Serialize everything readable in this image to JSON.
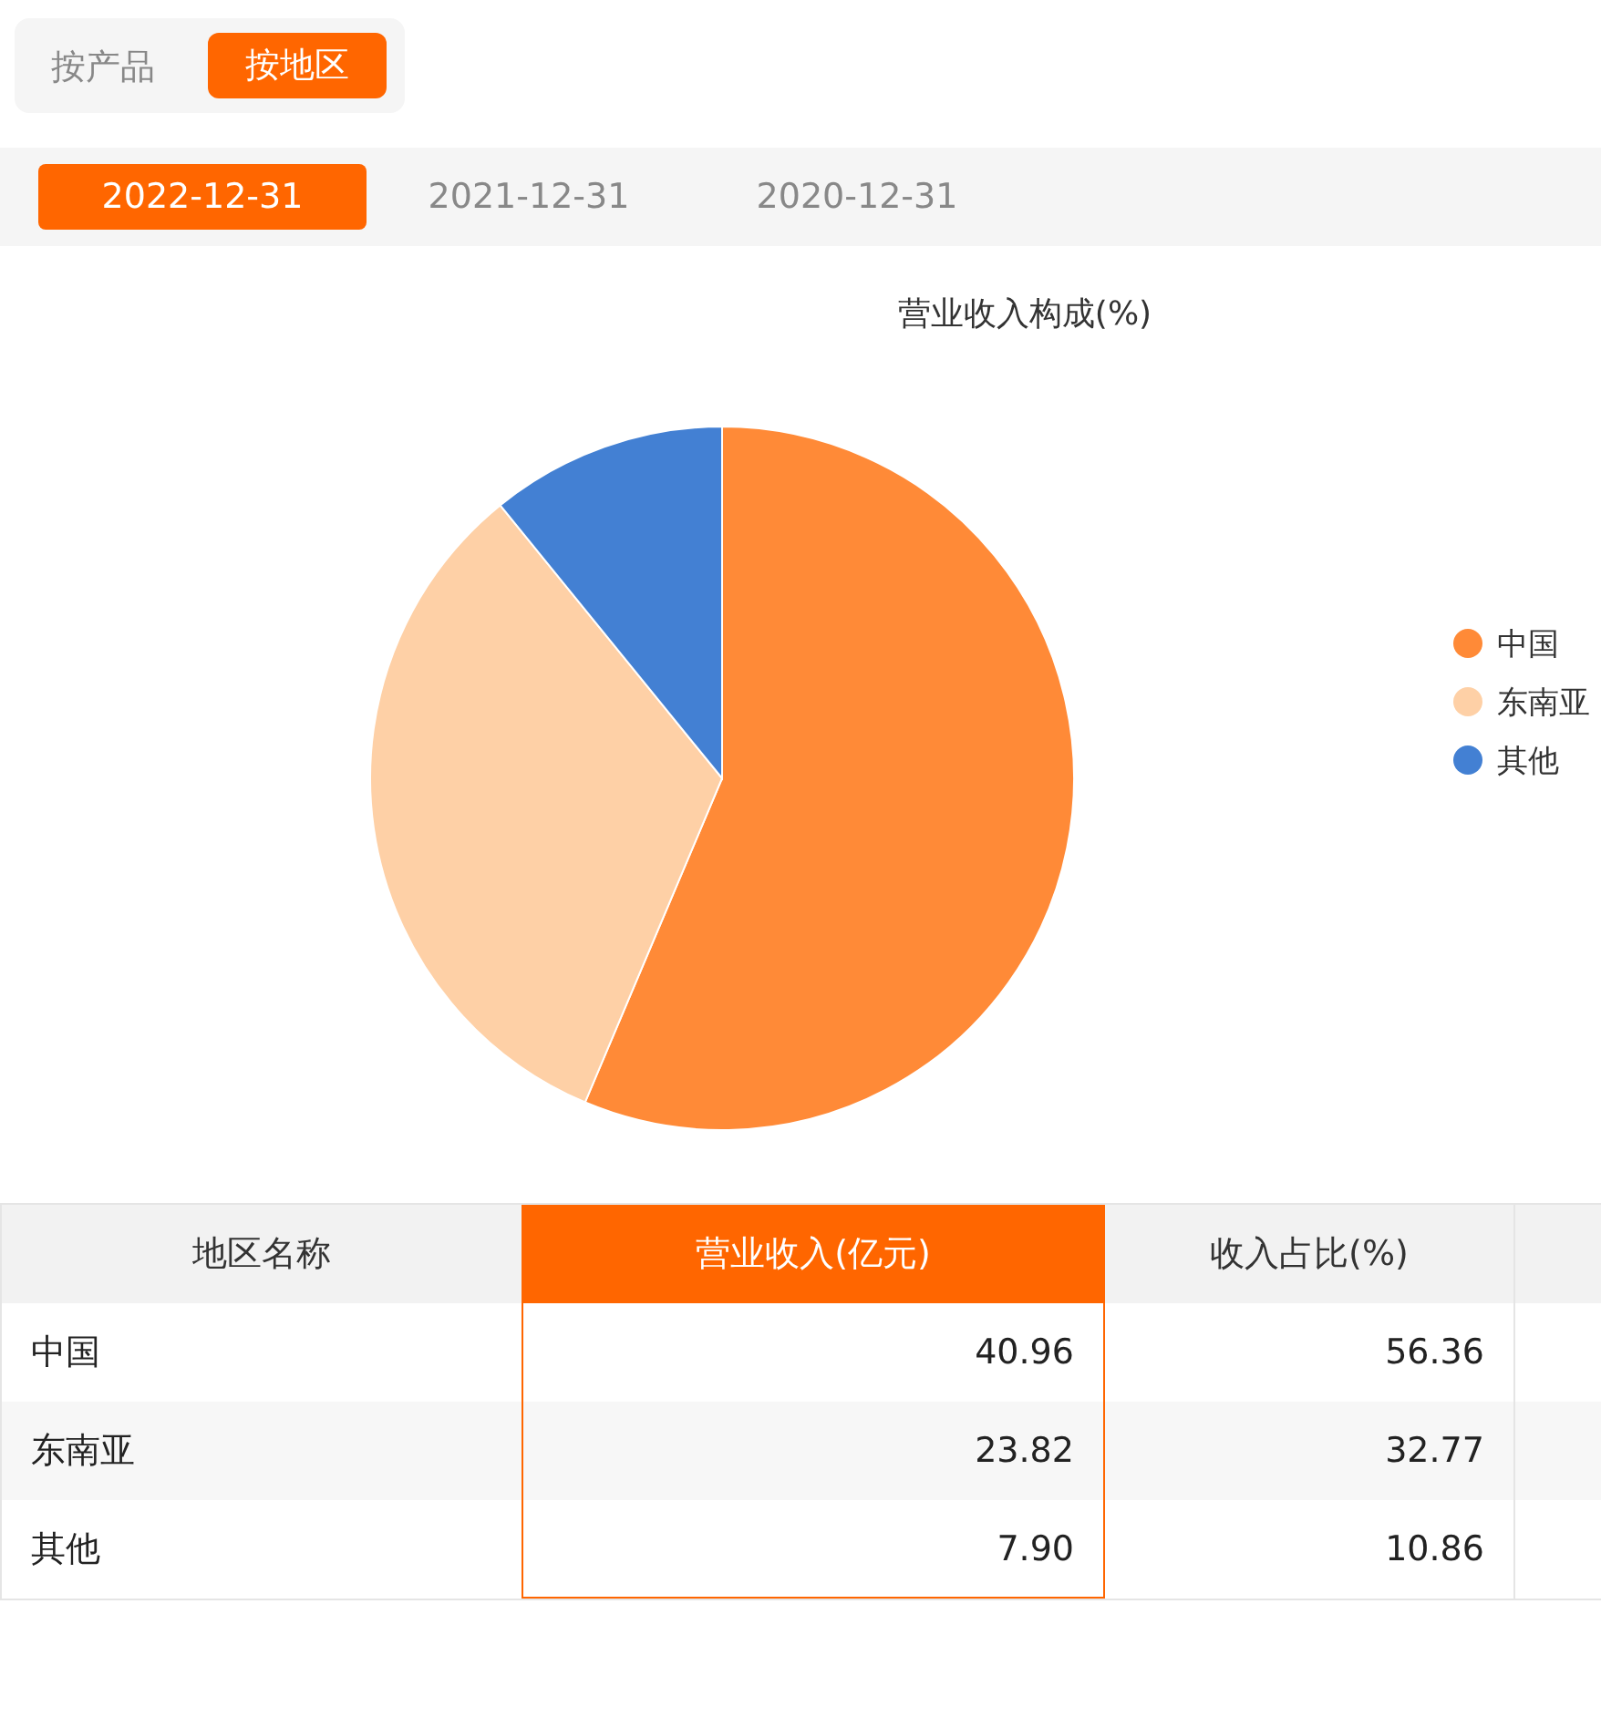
{
  "chart_data": {
    "type": "pie",
    "title": "营业收入构成(%)",
    "categories": [
      "中国",
      "东南亚",
      "其他"
    ],
    "values": [
      56.36,
      32.77,
      10.86
    ],
    "colors": [
      "#ff8a37",
      "#fed0a6",
      "#4380d3"
    ],
    "legend": "right",
    "annotations": [
      "按产品",
      "按地区",
      "2022-12-31",
      "2021-12-31",
      "2020-12-31",
      "地区名称",
      "营业收入(亿元)",
      "收入占比(%)",
      "40.96",
      "23.82",
      "7.90",
      "56.36",
      "32.77",
      "10.86"
    ]
  }
}
